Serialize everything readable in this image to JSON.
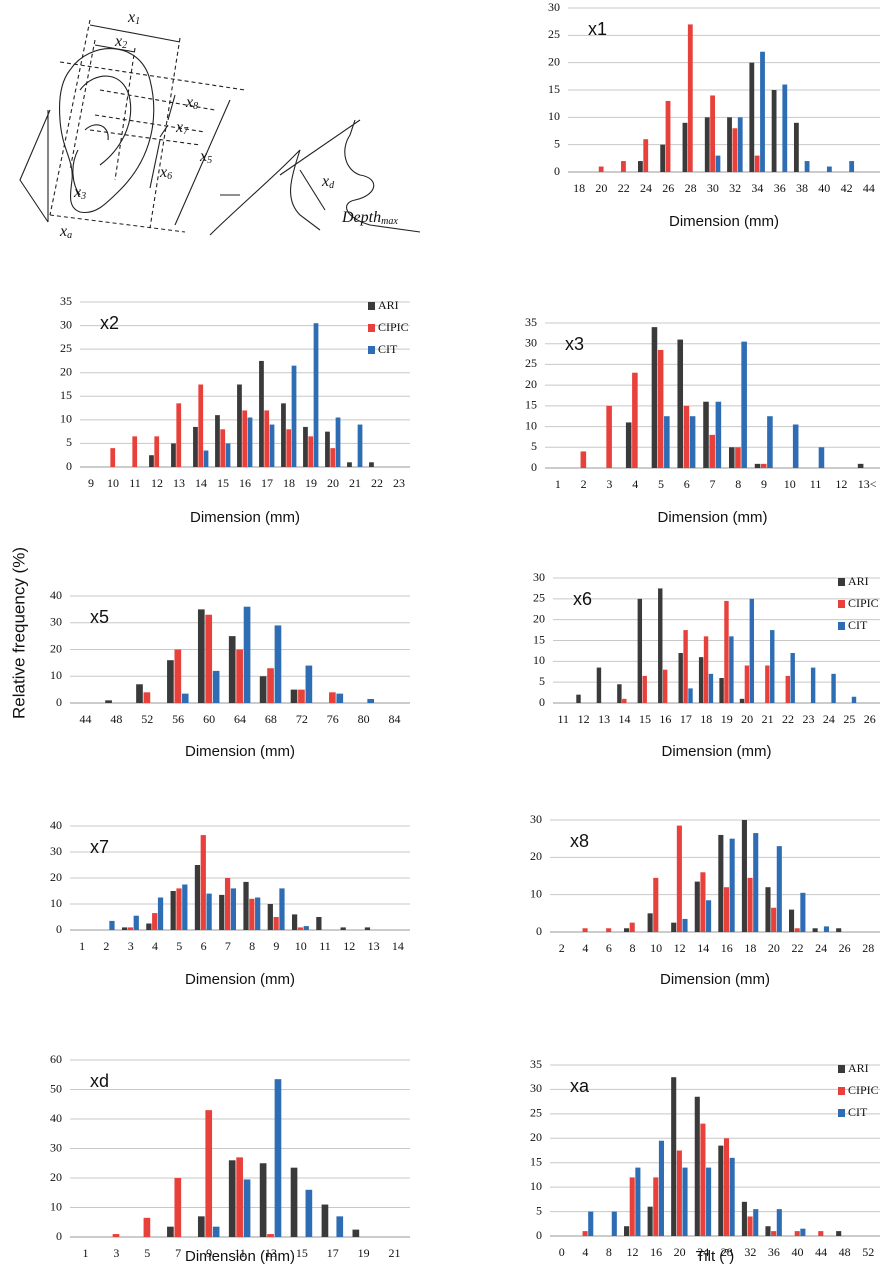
{
  "figure": {
    "ylabel": "Relative frequency (%)"
  },
  "diagram": {
    "labels": [
      {
        "text": "x",
        "sub": "1"
      },
      {
        "text": "x",
        "sub": "2"
      },
      {
        "text": "x",
        "sub": "8"
      },
      {
        "text": "x",
        "sub": "7"
      },
      {
        "text": "x",
        "sub": "5"
      },
      {
        "text": "x",
        "sub": "6"
      },
      {
        "text": "x",
        "sub": "3"
      },
      {
        "text": "x",
        "sub": "a"
      },
      {
        "text": "x",
        "sub": "d"
      },
      {
        "text": "Depth",
        "sub": "max"
      }
    ]
  },
  "chart_data": [
    {
      "type": "bar",
      "label": "x1",
      "xlabel": "Dimension (mm)",
      "grid": true,
      "categories": [
        "18",
        "20",
        "22",
        "24",
        "26",
        "28",
        "30",
        "32",
        "34",
        "36",
        "38",
        "40",
        "42",
        "44"
      ],
      "series": [
        {
          "color": "#3a3a3a",
          "values": [
            0,
            0,
            0,
            2,
            5,
            9,
            10,
            10,
            20,
            15,
            9,
            0,
            0,
            0
          ]
        },
        {
          "color": "#e8413c",
          "values": [
            0,
            1,
            2,
            6,
            13,
            27,
            14,
            8,
            3,
            0,
            0,
            0,
            0,
            0
          ]
        },
        {
          "color": "#2e6db4",
          "values": [
            0,
            0,
            0,
            0,
            0,
            0,
            3,
            10,
            22,
            16,
            2,
            1,
            2,
            0
          ]
        }
      ],
      "ylim": [
        0,
        30
      ],
      "yticks": [
        0,
        5,
        10,
        15,
        20,
        25,
        30
      ]
    },
    {
      "type": "bar",
      "label": "x2",
      "xlabel": "Dimension (mm)",
      "grid": true,
      "legend": "top-right",
      "categories": [
        "9",
        "10",
        "11",
        "12",
        "13",
        "14",
        "15",
        "16",
        "17",
        "18",
        "19",
        "20",
        "21",
        "22",
        "23"
      ],
      "series": [
        {
          "name": "ARI",
          "color": "#3a3a3a",
          "values": [
            0,
            0,
            0,
            2.5,
            5,
            8.5,
            11,
            17.5,
            22.5,
            13.5,
            8.5,
            7.5,
            1,
            1,
            0
          ]
        },
        {
          "name": "CIPIC",
          "color": "#e8413c",
          "values": [
            0,
            4,
            6.5,
            6.5,
            13.5,
            17.5,
            8,
            12,
            12,
            8,
            6.5,
            4,
            0,
            0,
            0
          ]
        },
        {
          "name": "CIT",
          "color": "#2e6db4",
          "values": [
            0,
            0,
            0,
            0,
            0,
            3.5,
            5,
            10.5,
            9,
            21.5,
            30.5,
            10.5,
            9,
            0,
            0
          ]
        }
      ],
      "ylim": [
        0,
        35
      ],
      "yticks": [
        0,
        5,
        10,
        15,
        20,
        25,
        30,
        35
      ]
    },
    {
      "type": "bar",
      "label": "x3",
      "xlabel": "Dimension (mm)",
      "grid": true,
      "categories": [
        "1",
        "2",
        "3",
        "4",
        "5",
        "6",
        "7",
        "8",
        "9",
        "10",
        "11",
        "12",
        "13<"
      ],
      "series": [
        {
          "color": "#3a3a3a",
          "values": [
            0,
            0,
            0,
            11,
            34,
            31,
            16,
            5,
            1,
            0,
            0,
            0,
            1
          ]
        },
        {
          "color": "#e8413c",
          "values": [
            0,
            4,
            15,
            23,
            28.5,
            15,
            8,
            5,
            1,
            0,
            0,
            0,
            0
          ]
        },
        {
          "color": "#2e6db4",
          "values": [
            0,
            0,
            0,
            0,
            12.5,
            12.5,
            16,
            30.5,
            12.5,
            10.5,
            5,
            0,
            0
          ]
        }
      ],
      "ylim": [
        0,
        35
      ],
      "yticks": [
        0,
        5,
        10,
        15,
        20,
        25,
        30,
        35
      ]
    },
    {
      "type": "bar",
      "label": "x5",
      "xlabel": "Dimension (mm)",
      "grid": true,
      "categories": [
        "44",
        "48",
        "52",
        "56",
        "60",
        "64",
        "68",
        "72",
        "76",
        "80",
        "84"
      ],
      "series": [
        {
          "color": "#3a3a3a",
          "values": [
            0,
            1,
            7,
            16,
            35,
            25,
            10,
            5,
            0,
            0,
            0
          ]
        },
        {
          "color": "#e8413c",
          "values": [
            0,
            0,
            4,
            20,
            33,
            20,
            13,
            5,
            4,
            0,
            0
          ]
        },
        {
          "color": "#2e6db4",
          "values": [
            0,
            0,
            0,
            3.5,
            12,
            36,
            29,
            14,
            3.5,
            1.5,
            0
          ]
        }
      ],
      "ylim": [
        0,
        40
      ],
      "yticks": [
        0,
        10,
        20,
        30,
        40
      ]
    },
    {
      "type": "bar",
      "label": "x6",
      "xlabel": "Dimension (mm)",
      "grid": true,
      "legend": "top-right",
      "categories": [
        "11",
        "12",
        "13",
        "14",
        "15",
        "16",
        "17",
        "18",
        "19",
        "20",
        "21",
        "22",
        "23",
        "24",
        "25",
        "26"
      ],
      "series": [
        {
          "name": "ARI",
          "color": "#3a3a3a",
          "values": [
            0,
            2,
            8.5,
            4.5,
            25,
            27.5,
            12,
            11,
            6,
            1,
            0,
            0,
            0,
            0,
            0,
            0
          ]
        },
        {
          "name": "CIPIC",
          "color": "#e8413c",
          "values": [
            0,
            0,
            0,
            1,
            6.5,
            8,
            17.5,
            16,
            24.5,
            9,
            9,
            6.5,
            0,
            0,
            0,
            0
          ]
        },
        {
          "name": "CIT",
          "color": "#2e6db4",
          "values": [
            0,
            0,
            0,
            0,
            0,
            0,
            3.5,
            7,
            16,
            25,
            17.5,
            12,
            8.5,
            7,
            1.5,
            0
          ]
        }
      ],
      "ylim": [
        0,
        30
      ],
      "yticks": [
        0,
        5,
        10,
        15,
        20,
        25,
        30
      ]
    },
    {
      "type": "bar",
      "label": "x7",
      "xlabel": "Dimension (mm)",
      "grid": true,
      "categories": [
        "1",
        "2",
        "3",
        "4",
        "5",
        "6",
        "7",
        "8",
        "9",
        "10",
        "11",
        "12",
        "13",
        "14"
      ],
      "series": [
        {
          "color": "#3a3a3a",
          "values": [
            0,
            0,
            1,
            2.5,
            15,
            25,
            13.5,
            18.5,
            10,
            6,
            5,
            1,
            1,
            0
          ]
        },
        {
          "color": "#e8413c",
          "values": [
            0,
            0,
            1,
            6.5,
            16,
            36.5,
            20,
            12,
            5,
            1,
            0,
            0,
            0,
            0
          ]
        },
        {
          "color": "#2e6db4",
          "values": [
            0,
            3.5,
            5.5,
            12.5,
            17.5,
            14,
            16,
            12.5,
            16,
            1.5,
            0,
            0,
            0,
            0
          ]
        }
      ],
      "ylim": [
        0,
        40
      ],
      "yticks": [
        0,
        10,
        20,
        30,
        40
      ]
    },
    {
      "type": "bar",
      "label": "x8",
      "xlabel": "Dimension (mm)",
      "grid": true,
      "categories": [
        "2",
        "4",
        "6",
        "8",
        "10",
        "12",
        "14",
        "16",
        "18",
        "20",
        "22",
        "24",
        "26",
        "28"
      ],
      "series": [
        {
          "color": "#3a3a3a",
          "values": [
            0,
            0,
            0,
            1,
            5,
            2.5,
            13.5,
            26,
            30,
            12,
            6,
            1,
            1,
            0
          ]
        },
        {
          "color": "#e8413c",
          "values": [
            0,
            1,
            1,
            2.5,
            14.5,
            28.5,
            16,
            12,
            14.5,
            6.5,
            1,
            0,
            0,
            0
          ]
        },
        {
          "color": "#2e6db4",
          "values": [
            0,
            0,
            0,
            0,
            0,
            3.5,
            8.5,
            25,
            26.5,
            23,
            10.5,
            1.5,
            0,
            0
          ]
        }
      ],
      "ylim": [
        0,
        30
      ],
      "yticks": [
        0,
        10,
        20,
        30
      ]
    },
    {
      "type": "bar",
      "label": "xd",
      "xlabel": "Dimension (mm)",
      "grid": true,
      "categories": [
        "1",
        "3",
        "5",
        "7",
        "9",
        "11",
        "13",
        "15",
        "17",
        "19",
        "21"
      ],
      "series": [
        {
          "color": "#3a3a3a",
          "values": [
            0,
            0,
            0,
            3.5,
            7,
            26,
            25,
            23.5,
            11,
            2.5,
            0
          ]
        },
        {
          "color": "#e8413c",
          "values": [
            0,
            1,
            6.5,
            20,
            43,
            27,
            1,
            0,
            0,
            0,
            0
          ]
        },
        {
          "color": "#2e6db4",
          "values": [
            0,
            0,
            0,
            0,
            3.5,
            19.5,
            53.5,
            16,
            7,
            0,
            0
          ]
        }
      ],
      "ylim": [
        0,
        60
      ],
      "yticks": [
        0,
        10,
        20,
        30,
        40,
        50,
        60
      ]
    },
    {
      "type": "bar",
      "label": "xa",
      "xlabel": "Tilt (˚)",
      "grid": true,
      "legend": "top-right",
      "categories": [
        "0",
        "4",
        "8",
        "12",
        "16",
        "20",
        "24",
        "28",
        "32",
        "36",
        "40",
        "44",
        "48",
        "52"
      ],
      "series": [
        {
          "name": "ARI",
          "color": "#3a3a3a",
          "values": [
            0,
            0,
            0,
            2,
            6,
            32.5,
            28.5,
            18.5,
            7,
            2,
            0,
            0,
            1,
            0
          ]
        },
        {
          "name": "CIPIC",
          "color": "#e8413c",
          "values": [
            0,
            1,
            0,
            12,
            12,
            17.5,
            23,
            20,
            4,
            1,
            1,
            1,
            0,
            0
          ]
        },
        {
          "name": "CIT",
          "color": "#2e6db4",
          "values": [
            0,
            5,
            5,
            14,
            19.5,
            14,
            14,
            16,
            5.5,
            5.5,
            1.5,
            0,
            0,
            0
          ]
        }
      ],
      "ylim": [
        0,
        35
      ],
      "yticks": [
        0,
        5,
        10,
        15,
        20,
        25,
        30,
        35
      ]
    }
  ]
}
